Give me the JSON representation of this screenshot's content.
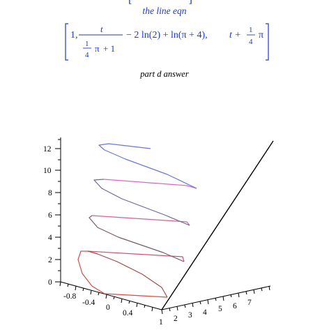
{
  "document": {
    "line_eqn_label": "the line eqn",
    "part_d_label": "part d answer"
  },
  "equation": {
    "first": "1,",
    "t": "t",
    "one": "1",
    "four": "4",
    "pi": "π",
    "plus_one": "+ 1",
    "minus_part": "− 2 ln(2) + ln(π + 4),",
    "t_plus": "t +",
    "pi_end": "π"
  },
  "plot": {
    "z_ticks": [
      "0",
      "2",
      "4",
      "6",
      "8",
      "10",
      "12"
    ],
    "x_ticks": [
      "-0.8",
      "-0.4",
      "0",
      "0.4"
    ],
    "y_ticks": [
      "1",
      "2",
      "3",
      "4",
      "5",
      "6",
      "7"
    ],
    "colors": {
      "curve_bottom": "#e03c3c",
      "curve_top": "#5a78ff",
      "curve_left": "#3c5050",
      "curve_right": "#e066e0",
      "tangent_line": "#000000",
      "equation_text": "#1a3ad0"
    }
  }
}
